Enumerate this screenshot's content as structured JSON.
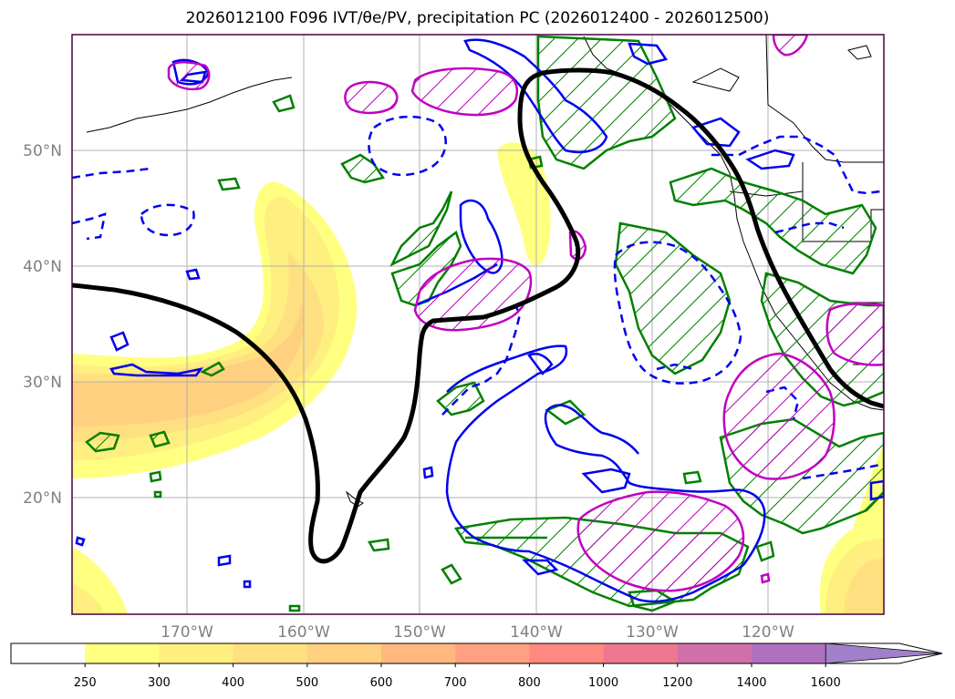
{
  "title": "2026012100 F096 IVT/θe/PV, precipitation PC (2026012400 - 2026012500)",
  "map": {
    "lat_labels": [
      "50°N",
      "40°N",
      "30°N",
      "20°N"
    ],
    "lon_labels": [
      "170°W",
      "160°W",
      "150°W",
      "140°W",
      "130°W",
      "120°W"
    ]
  },
  "colorbar": {
    "levels": [
      "250",
      "300",
      "400",
      "500",
      "600",
      "700",
      "800",
      "1000",
      "1200",
      "1400",
      "1600"
    ],
    "colors": [
      "#ffffff",
      "#ffff80",
      "#ffee80",
      "#ffe080",
      "#ffd080",
      "#ffb880",
      "#ffa080",
      "#ff8880",
      "#ee7890",
      "#d070a8",
      "#b070c0",
      "#a080c8"
    ],
    "extend": "max"
  },
  "legend_colors": {
    "theta_e": "#000000",
    "pv_positive": "#0000ee",
    "pv_negative_dashed": "#0000ee",
    "precip_green": "#008000",
    "precip_magenta": "#c000c0"
  }
}
